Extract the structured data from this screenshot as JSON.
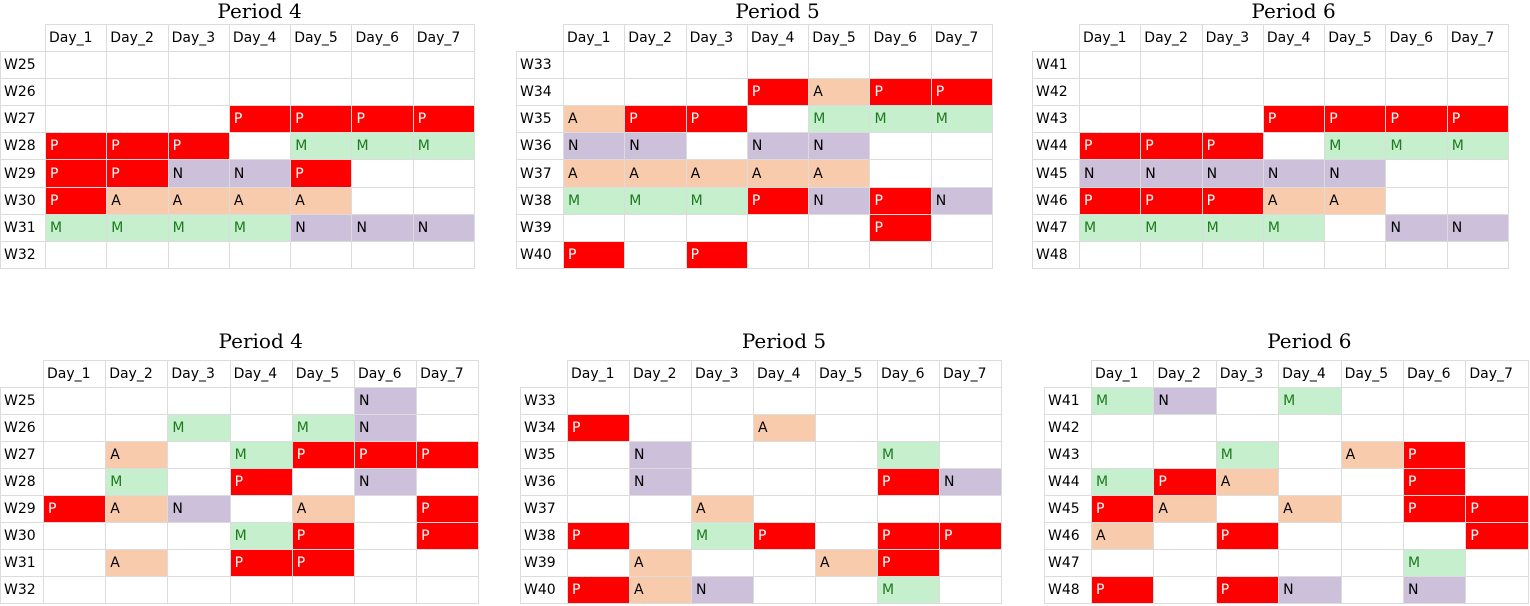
{
  "day_headers": [
    "Day_1",
    "Day_2",
    "Day_3",
    "Day_4",
    "Day_5",
    "Day_6",
    "Day_7"
  ],
  "colors": {
    "P": "#ff0000",
    "A": "#f8cbad",
    "M": "#c6efce",
    "N": "#ccc0da"
  },
  "panels": [
    {
      "title": "Period 4",
      "rows": [
        {
          "label": "W25",
          "cells": [
            "",
            "",
            "",
            "",
            "",
            "",
            ""
          ]
        },
        {
          "label": "W26",
          "cells": [
            "",
            "",
            "",
            "",
            "",
            "",
            ""
          ]
        },
        {
          "label": "W27",
          "cells": [
            "",
            "",
            "",
            "P",
            "P",
            "P",
            "P"
          ]
        },
        {
          "label": "W28",
          "cells": [
            "P",
            "P",
            "P",
            "",
            "M",
            "M",
            "M"
          ]
        },
        {
          "label": "W29",
          "cells": [
            "P",
            "P",
            "N",
            "N",
            "P",
            "",
            ""
          ]
        },
        {
          "label": "W30",
          "cells": [
            "P",
            "A",
            "A",
            "A",
            "A",
            "",
            ""
          ]
        },
        {
          "label": "W31",
          "cells": [
            "M",
            "M",
            "M",
            "M",
            "N",
            "N",
            "N"
          ]
        },
        {
          "label": "W32",
          "cells": [
            "",
            "",
            "",
            "",
            "",
            "",
            ""
          ]
        }
      ]
    },
    {
      "title": "Period 5",
      "rows": [
        {
          "label": "W33",
          "cells": [
            "",
            "",
            "",
            "",
            "",
            "",
            ""
          ]
        },
        {
          "label": "W34",
          "cells": [
            "",
            "",
            "",
            "P",
            "A",
            "P",
            "P"
          ]
        },
        {
          "label": "W35",
          "cells": [
            "A",
            "P",
            "P",
            "",
            "M",
            "M",
            "M"
          ]
        },
        {
          "label": "W36",
          "cells": [
            "N",
            "N",
            "",
            "N",
            "N",
            "",
            ""
          ]
        },
        {
          "label": "W37",
          "cells": [
            "A",
            "A",
            "A",
            "A",
            "A",
            "",
            ""
          ]
        },
        {
          "label": "W38",
          "cells": [
            "M",
            "M",
            "M",
            "P",
            "N",
            "P",
            "N"
          ]
        },
        {
          "label": "W39",
          "cells": [
            "",
            "",
            "",
            "",
            "",
            "P",
            ""
          ]
        },
        {
          "label": "W40",
          "cells": [
            "P",
            "",
            "P",
            "",
            "",
            "",
            ""
          ]
        }
      ]
    },
    {
      "title": "Period 6",
      "rows": [
        {
          "label": "W41",
          "cells": [
            "",
            "",
            "",
            "",
            "",
            "",
            ""
          ]
        },
        {
          "label": "W42",
          "cells": [
            "",
            "",
            "",
            "",
            "",
            "",
            ""
          ]
        },
        {
          "label": "W43",
          "cells": [
            "",
            "",
            "",
            "P",
            "P",
            "P",
            "P"
          ]
        },
        {
          "label": "W44",
          "cells": [
            "P",
            "P",
            "P",
            "",
            "M",
            "M",
            "M"
          ]
        },
        {
          "label": "W45",
          "cells": [
            "N",
            "N",
            "N",
            "N",
            "N",
            "",
            ""
          ]
        },
        {
          "label": "W46",
          "cells": [
            "P",
            "P",
            "P",
            "A",
            "A",
            "",
            ""
          ]
        },
        {
          "label": "W47",
          "cells": [
            "M",
            "M",
            "M",
            "M",
            "",
            "N",
            "N"
          ]
        },
        {
          "label": "W48",
          "cells": [
            "",
            "",
            "",
            "",
            "",
            "",
            ""
          ]
        }
      ]
    },
    {
      "title": "Period 4",
      "rows": [
        {
          "label": "W25",
          "cells": [
            "",
            "",
            "",
            "",
            "",
            "N",
            ""
          ]
        },
        {
          "label": "W26",
          "cells": [
            "",
            "",
            "M",
            "",
            "M",
            "N",
            ""
          ]
        },
        {
          "label": "W27",
          "cells": [
            "",
            "A",
            "",
            "M",
            "P",
            "P",
            "P"
          ]
        },
        {
          "label": "W28",
          "cells": [
            "",
            "M",
            "",
            "P",
            "",
            "N",
            ""
          ]
        },
        {
          "label": "W29",
          "cells": [
            "P",
            "A",
            "N",
            "",
            "A",
            "",
            "P"
          ]
        },
        {
          "label": "W30",
          "cells": [
            "",
            "",
            "",
            "M",
            "P",
            "",
            "P"
          ]
        },
        {
          "label": "W31",
          "cells": [
            "",
            "A",
            "",
            "P",
            "P",
            "",
            ""
          ]
        },
        {
          "label": "W32",
          "cells": [
            "",
            "",
            "",
            "",
            "",
            "",
            ""
          ]
        }
      ]
    },
    {
      "title": "Period 5",
      "rows": [
        {
          "label": "W33",
          "cells": [
            "",
            "",
            "",
            "",
            "",
            "",
            ""
          ]
        },
        {
          "label": "W34",
          "cells": [
            "P",
            "",
            "",
            "A",
            "",
            "",
            ""
          ]
        },
        {
          "label": "W35",
          "cells": [
            "",
            "N",
            "",
            "",
            "",
            "M",
            ""
          ]
        },
        {
          "label": "W36",
          "cells": [
            "",
            "N",
            "",
            "",
            "",
            "P",
            "N"
          ]
        },
        {
          "label": "W37",
          "cells": [
            "",
            "",
            "A",
            "",
            "",
            "",
            ""
          ]
        },
        {
          "label": "W38",
          "cells": [
            "P",
            "",
            "M",
            "P",
            "",
            "P",
            "P"
          ]
        },
        {
          "label": "W39",
          "cells": [
            "",
            "A",
            "",
            "",
            "A",
            "P",
            ""
          ]
        },
        {
          "label": "W40",
          "cells": [
            "P",
            "A",
            "N",
            "",
            "",
            "M",
            ""
          ]
        }
      ]
    },
    {
      "title": "Period 6",
      "rows": [
        {
          "label": "W41",
          "cells": [
            "M",
            "N",
            "",
            "M",
            "",
            "",
            ""
          ]
        },
        {
          "label": "W42",
          "cells": [
            "",
            "",
            "",
            "",
            "",
            "",
            ""
          ]
        },
        {
          "label": "W43",
          "cells": [
            "",
            "",
            "M",
            "",
            "A",
            "P",
            ""
          ]
        },
        {
          "label": "W44",
          "cells": [
            "M",
            "P",
            "A",
            "",
            "",
            "P",
            ""
          ]
        },
        {
          "label": "W45",
          "cells": [
            "P",
            "A",
            "",
            "A",
            "",
            "P",
            "P"
          ]
        },
        {
          "label": "W46",
          "cells": [
            "A",
            "",
            "P",
            "",
            "",
            "",
            "P"
          ]
        },
        {
          "label": "W47",
          "cells": [
            "",
            "",
            "",
            "",
            "",
            "M",
            ""
          ]
        },
        {
          "label": "W48",
          "cells": [
            "P",
            "",
            "P",
            "N",
            "",
            "N",
            ""
          ]
        }
      ]
    }
  ]
}
